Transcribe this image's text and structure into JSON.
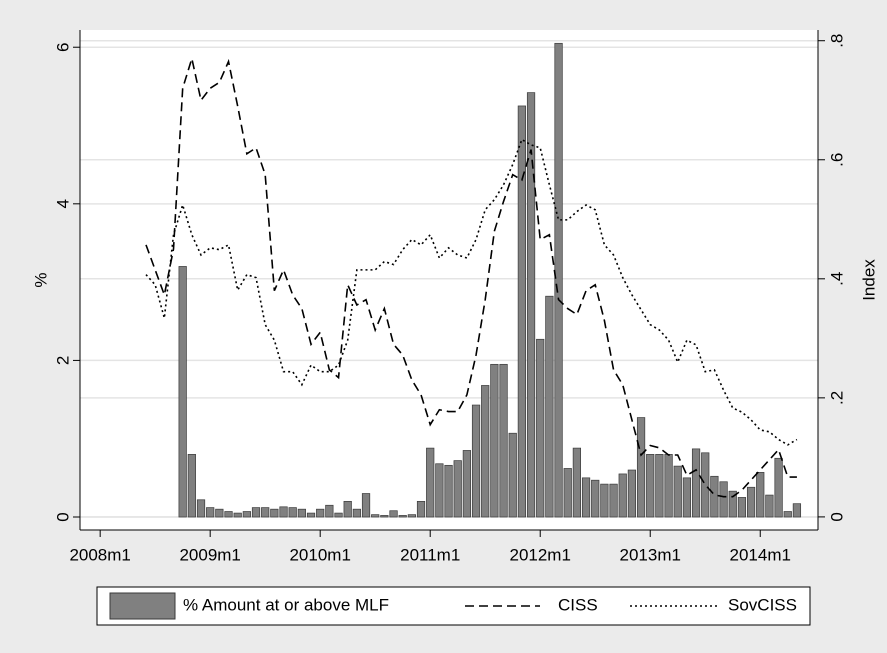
{
  "chart_data": {
    "type": "bar",
    "x": [
      581,
      582,
      583,
      584,
      585,
      586,
      587,
      588,
      589,
      590,
      591,
      592,
      593,
      594,
      595,
      596,
      597,
      598,
      599,
      600,
      601,
      602,
      603,
      604,
      605,
      606,
      607,
      608,
      609,
      610,
      611,
      612,
      613,
      614,
      615,
      616,
      617,
      618,
      619,
      620,
      621,
      622,
      623,
      624,
      625,
      626,
      627,
      628,
      629,
      630,
      631,
      632,
      633,
      634,
      635,
      636,
      637,
      638,
      639,
      640,
      641,
      642,
      643,
      644,
      645,
      646,
      647,
      648,
      649,
      650,
      651,
      652
    ],
    "series": [
      {
        "name": "% Amount at or above MLF",
        "type": "bar",
        "color": "#808080",
        "values": [
          0,
          0,
          0,
          0,
          3.2,
          0.8,
          0.22,
          0.12,
          0.1,
          0.07,
          0.05,
          0.07,
          0.12,
          0.12,
          0.1,
          0.13,
          0.12,
          0.1,
          0.05,
          0.1,
          0.15,
          0.05,
          0.2,
          0.1,
          0.3,
          0.03,
          0.02,
          0.08,
          0.02,
          0.03,
          0.2,
          0.88,
          0.68,
          0.66,
          0.72,
          0.85,
          1.43,
          1.68,
          1.95,
          1.95,
          1.07,
          5.25,
          5.42,
          2.27,
          2.82,
          6.05,
          0.62,
          0.88,
          0.5,
          0.47,
          0.42,
          0.42,
          0.55,
          0.6,
          1.27,
          0.8,
          0.8,
          0.8,
          0.65,
          0.5,
          0.87,
          0.82,
          0.52,
          0.45,
          0.33,
          0.25,
          0.38,
          0.57,
          0.28,
          0.75,
          0.07,
          0.17
        ]
      },
      {
        "name": "CISS",
        "type": "line",
        "axis": "y2",
        "color": "#000000",
        "style": "dashed",
        "values": [
          0.457,
          0.415,
          0.373,
          0.45,
          0.72,
          0.77,
          0.7,
          0.72,
          0.73,
          0.765,
          0.69,
          0.61,
          0.62,
          0.575,
          0.38,
          0.415,
          0.373,
          0.35,
          0.29,
          0.31,
          0.247,
          0.234,
          0.39,
          0.356,
          0.365,
          0.314,
          0.35,
          0.29,
          0.272,
          0.23,
          0.205,
          0.155,
          0.18,
          0.177,
          0.177,
          0.205,
          0.272,
          0.365,
          0.48,
          0.53,
          0.575,
          0.566,
          0.617,
          0.466,
          0.474,
          0.365,
          0.35,
          0.34,
          0.38,
          0.39,
          0.33,
          0.247,
          0.222,
          0.163,
          0.104,
          0.12,
          0.116,
          0.104,
          0.104,
          0.07,
          0.079,
          0.054,
          0.037,
          0.034,
          0.034,
          0.045,
          0.062,
          0.079,
          0.096,
          0.113,
          0.067,
          0.067
        ]
      },
      {
        "name": "SovCISS",
        "type": "line",
        "axis": "y2",
        "color": "#000000",
        "style": "dotted",
        "values": [
          0.407,
          0.39,
          0.334,
          0.474,
          0.524,
          0.474,
          0.44,
          0.452,
          0.449,
          0.457,
          0.381,
          0.407,
          0.402,
          0.323,
          0.297,
          0.244,
          0.244,
          0.222,
          0.255,
          0.244,
          0.244,
          0.255,
          0.297,
          0.415,
          0.415,
          0.415,
          0.429,
          0.424,
          0.449,
          0.466,
          0.457,
          0.474,
          0.435,
          0.452,
          0.44,
          0.435,
          0.466,
          0.516,
          0.533,
          0.558,
          0.592,
          0.634,
          0.625,
          0.62,
          0.558,
          0.499,
          0.499,
          0.513,
          0.524,
          0.516,
          0.457,
          0.44,
          0.402,
          0.373,
          0.348,
          0.323,
          0.314,
          0.297,
          0.26,
          0.297,
          0.289,
          0.244,
          0.247,
          0.213,
          0.183,
          0.176,
          0.163,
          0.146,
          0.143,
          0.13,
          0.121,
          0.13
        ]
      }
    ],
    "ylabel": "%",
    "y2label": "Index",
    "xlim": [
      573.8,
      654.3
    ],
    "xticks": [
      {
        "value": 576,
        "label": "2008m1"
      },
      {
        "value": 588,
        "label": "2009m1"
      },
      {
        "value": 600,
        "label": "2010m1"
      },
      {
        "value": 612,
        "label": "2011m1"
      },
      {
        "value": 624,
        "label": "2012m1"
      },
      {
        "value": 636,
        "label": "2013m1"
      },
      {
        "value": 648,
        "label": "2014m1"
      }
    ],
    "ylim": [
      -0.166,
      6.22
    ],
    "yticks": [
      0,
      2,
      4,
      6
    ],
    "y2lim": [
      -0.022,
      0.818
    ],
    "y2ticks": [
      0,
      {
        "value": 0.2,
        "label": ".2"
      },
      {
        "value": 0.4,
        "label": ".4"
      },
      {
        "value": 0.6,
        "label": ".6"
      },
      {
        "value": 0.8,
        "label": ".8"
      }
    ],
    "grid": true
  }
}
